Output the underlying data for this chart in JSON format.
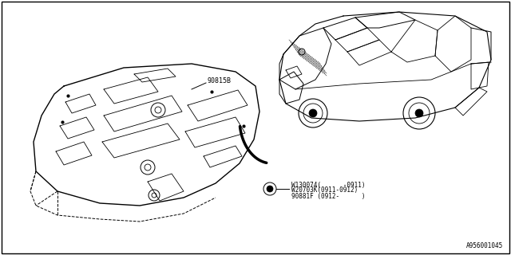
{
  "bg_color": "#ffffff",
  "line_color": "#000000",
  "text_color": "#000000",
  "label_90815B": "90815B",
  "label_w1": "W130074(      -0911)",
  "label_w2": "W20703K(0911-0912)",
  "label_90881F": "90881F (0912-      )",
  "footnote": "A956001045",
  "font_size": 5.5
}
